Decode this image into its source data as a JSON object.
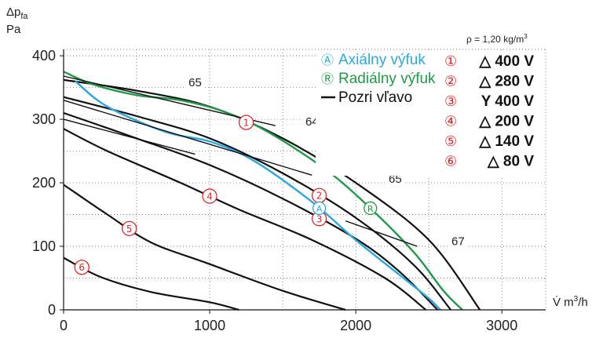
{
  "chart_data": {
    "type": "line",
    "title": "",
    "y_axis_label_line1": "Δp",
    "y_axis_label_sub": "fa",
    "y_axis_label_line2": "Pa",
    "x_axis_label": "V̇ m",
    "x_axis_label_sup": "3",
    "x_axis_label_end": "/h",
    "density_note": "ρ = 1,20 kg/m",
    "density_note_sup": "3",
    "xlim": [
      0,
      3300
    ],
    "ylim": [
      0,
      410
    ],
    "xticks": [
      "0",
      "1000",
      "2000",
      "3000"
    ],
    "yticks": [
      "0",
      "100",
      "200",
      "300",
      "400"
    ],
    "xtick_values": [
      0,
      1000,
      2000,
      3000
    ],
    "ytick_values": [
      0,
      100,
      200,
      300,
      400
    ],
    "grid": true,
    "colors": {
      "axial": "#29a8e0",
      "radial": "#1f9a48",
      "fan_curves": "#111111",
      "marker": "#e2242a",
      "grid": "#555555"
    },
    "series": [
      {
        "id": "1",
        "label": "①",
        "voltage": "△ 400 V",
        "points": [
          [
            0,
            362
          ],
          [
            500,
            345
          ],
          [
            1000,
            320
          ],
          [
            1500,
            270
          ],
          [
            2000,
            200
          ],
          [
            2500,
            110
          ],
          [
            2850,
            0
          ]
        ]
      },
      {
        "id": "2",
        "label": "②",
        "voltage": "△ 280 V",
        "points": [
          [
            0,
            335
          ],
          [
            500,
            305
          ],
          [
            1000,
            270
          ],
          [
            1500,
            215
          ],
          [
            2000,
            145
          ],
          [
            2400,
            70
          ],
          [
            2650,
            0
          ]
        ]
      },
      {
        "id": "3",
        "label": "③",
        "voltage": "Y 400 V",
        "points": [
          [
            0,
            310
          ],
          [
            500,
            270
          ],
          [
            1000,
            228
          ],
          [
            1500,
            175
          ],
          [
            2000,
            112
          ],
          [
            2300,
            60
          ],
          [
            2560,
            0
          ]
        ]
      },
      {
        "id": "4",
        "label": "④",
        "voltage": "△ 200 V",
        "points": [
          [
            0,
            285
          ],
          [
            300,
            250
          ],
          [
            800,
            200
          ],
          [
            1200,
            158
          ],
          [
            1700,
            110
          ],
          [
            2200,
            50
          ],
          [
            2480,
            0
          ]
        ]
      },
      {
        "id": "5",
        "label": "⑤",
        "voltage": "△ 140 V",
        "points": [
          [
            0,
            197
          ],
          [
            300,
            150
          ],
          [
            600,
            106
          ],
          [
            1000,
            72
          ],
          [
            1500,
            30
          ],
          [
            1930,
            0
          ]
        ]
      },
      {
        "id": "6",
        "label": "⑥",
        "voltage": "△ 80 V",
        "points": [
          [
            0,
            82
          ],
          [
            250,
            52
          ],
          [
            600,
            28
          ],
          [
            1000,
            12
          ],
          [
            1200,
            0
          ]
        ]
      }
    ],
    "system_curves": [
      {
        "name": "Axiálny výfuk",
        "symbol": "Ⓐ",
        "points": [
          [
            80,
            360
          ],
          [
            300,
            320
          ],
          [
            700,
            280
          ],
          [
            1000,
            265
          ],
          [
            1300,
            235
          ],
          [
            1700,
            170
          ],
          [
            2000,
            110
          ],
          [
            2300,
            55
          ],
          [
            2500,
            18
          ],
          [
            2580,
            0
          ]
        ]
      },
      {
        "name": "Radiálny výfuk",
        "symbol": "Ⓡ",
        "points": [
          [
            0,
            375
          ],
          [
            200,
            355
          ],
          [
            500,
            338
          ],
          [
            800,
            330
          ],
          [
            1100,
            312
          ],
          [
            1400,
            280
          ],
          [
            1800,
            220
          ],
          [
            2100,
            160
          ],
          [
            2400,
            90
          ],
          [
            2600,
            30
          ],
          [
            2730,
            0
          ]
        ]
      }
    ],
    "efficiency_labels": [
      {
        "text": "65",
        "x": 900,
        "y": 352
      },
      {
        "text": "64",
        "x": 1700,
        "y": 290
      },
      {
        "text": "65",
        "x": 2270,
        "y": 200
      },
      {
        "text": "67",
        "x": 2700,
        "y": 102
      }
    ],
    "efficiency_lines": [
      {
        "points": [
          [
            0,
            368
          ],
          [
            1450,
            290
          ]
        ]
      },
      {
        "points": [
          [
            0,
            330
          ],
          [
            1700,
            212
          ]
        ]
      },
      {
        "points": [
          [
            1930,
            140
          ],
          [
            2420,
            100
          ]
        ]
      },
      {
        "points": [
          [
            0,
            300
          ],
          [
            900,
            245
          ]
        ]
      }
    ],
    "legend": [
      {
        "text": "Axiálny výfuk",
        "symbol": "Ⓐ",
        "color": "#29a8e0"
      },
      {
        "text": "Radiálny výfuk",
        "symbol": "Ⓡ",
        "color": "#1f9a48"
      },
      {
        "text": "Pozri vľavo",
        "symbol": "",
        "color": "#111111"
      }
    ],
    "legend_placement": "top-right"
  }
}
